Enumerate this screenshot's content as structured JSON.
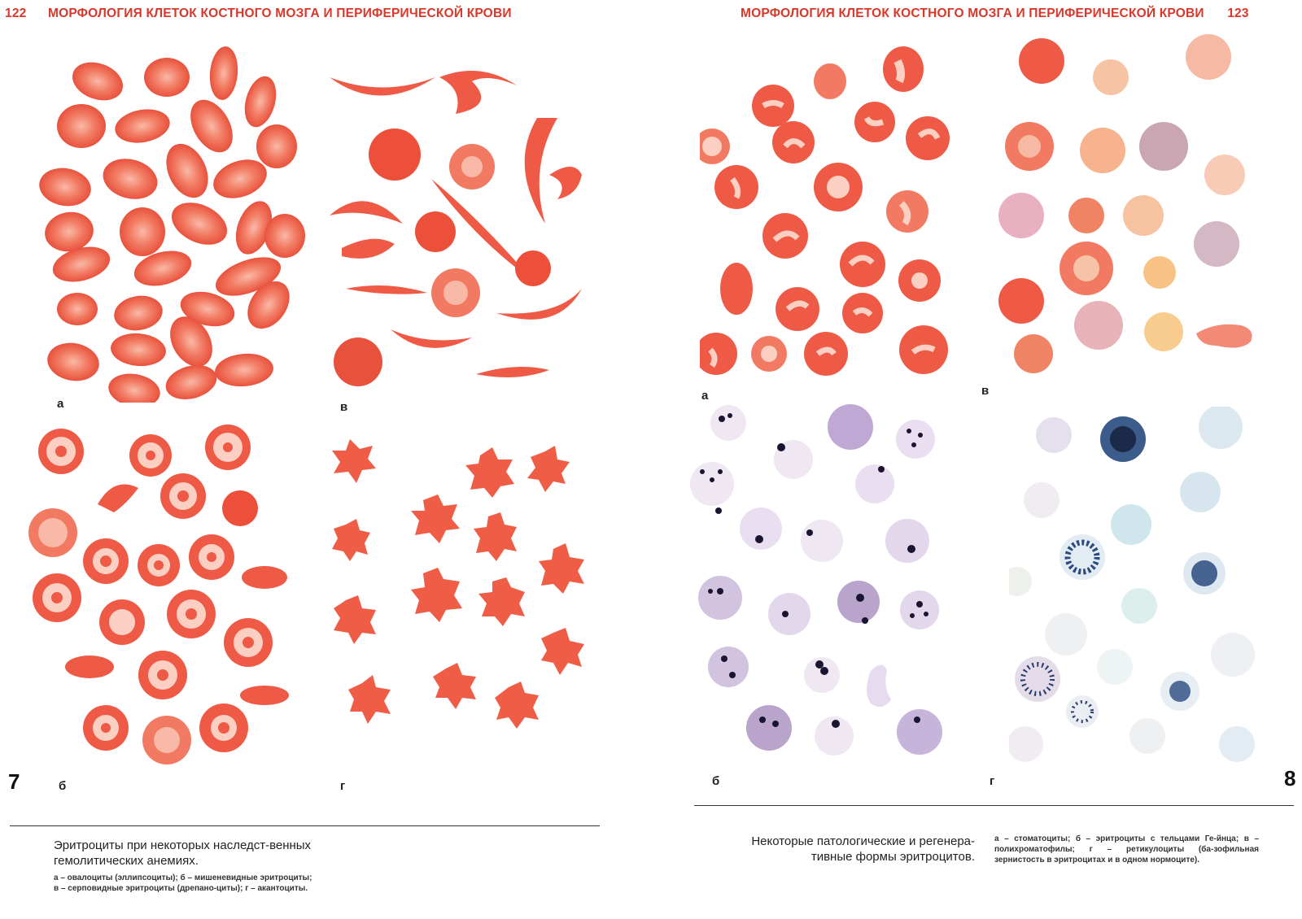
{
  "left_page": {
    "page_number": "122",
    "header_title": "МОРФОЛОГИЯ КЛЕТОК КОСТНОГО МОЗГА И ПЕРИФЕРИЧЕСКОЙ КРОВИ",
    "figure_number": "7",
    "panel_labels": {
      "a": "а",
      "b": "б",
      "v": "в",
      "g": "г"
    },
    "caption_title": "Эритроциты при некоторых наследст-венных гемолитических анемиях.",
    "caption_text": "а – овалоциты (эллипсоциты); б – мишеневидные эритроциты; в – серповидные эритроциты (дрепано-циты); г – акантоциты."
  },
  "right_page": {
    "page_number": "123",
    "header_title": "МОРФОЛОГИЯ КЛЕТОК КОСТНОГО МОЗГА И ПЕРИФЕРИЧЕСКОЙ КРОВИ",
    "figure_number": "8",
    "panel_labels": {
      "a": "а",
      "b": "б",
      "v": "в",
      "g": "г"
    },
    "caption_title": "Некоторые патологические и регенера-тивные формы эритроцитов.",
    "caption_text": "а – стоматоциты; б – эритроциты с тельцами Ге-йнца; в – полихроматофилы; г – ретикулоциты (ба-зофильная зернистость в эритроцитах и в одном нормоците)."
  },
  "colors": {
    "header_red": "#d8372a",
    "cell_red": "#ee5a45",
    "cell_pale": "#f7b3a3",
    "heinz_violet": "#b9a4cc",
    "reticulo_blue": "#c9dbe6"
  }
}
